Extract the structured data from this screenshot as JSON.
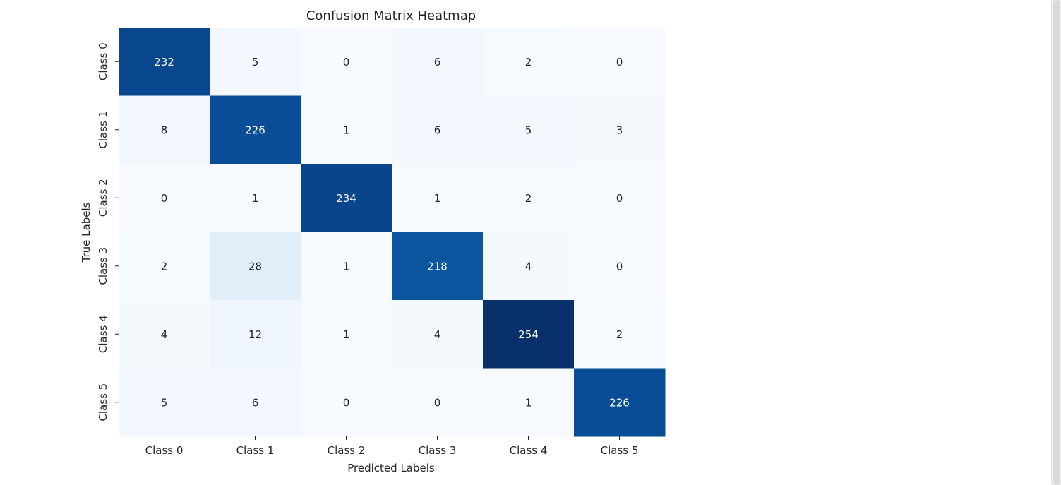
{
  "chart_data": {
    "type": "heatmap",
    "title": "Confusion Matrix Heatmap",
    "xlabel": "Predicted Labels",
    "ylabel": "True Labels",
    "x_categories": [
      "Class 0",
      "Class 1",
      "Class 2",
      "Class 3",
      "Class 4",
      "Class 5"
    ],
    "y_categories": [
      "Class 0",
      "Class 1",
      "Class 2",
      "Class 3",
      "Class 4",
      "Class 5"
    ],
    "values": [
      [
        232,
        5,
        0,
        6,
        2,
        0
      ],
      [
        8,
        226,
        1,
        6,
        5,
        3
      ],
      [
        0,
        1,
        234,
        1,
        2,
        0
      ],
      [
        2,
        28,
        1,
        218,
        4,
        0
      ],
      [
        4,
        12,
        1,
        4,
        254,
        2
      ],
      [
        5,
        6,
        0,
        0,
        1,
        226
      ]
    ],
    "colormap": "Blues",
    "colorbar": false,
    "annotations": true,
    "color_low": "#f7fbff",
    "color_high": "#08306b",
    "annotation_text_dark": "#262626",
    "annotation_text_light": "#ffffff"
  }
}
